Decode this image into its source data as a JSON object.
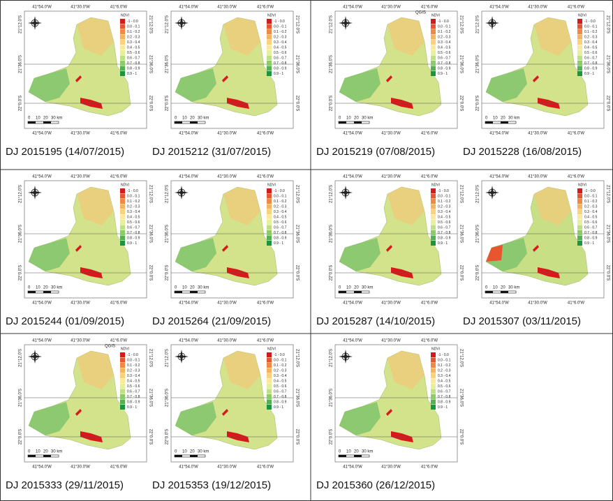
{
  "map_labels": {
    "lon": [
      "41°54.0'W",
      "41°30.0'W",
      "41°6.0'W"
    ],
    "lat": [
      "21°12.0'S",
      "21°36.0'S",
      "22°0.0'S"
    ],
    "legend_title": "NDVI",
    "legend_classes": [
      "-1 - 0.0",
      "0.0 - 0.1",
      "0.1 - 0.2",
      "0.2 - 0.3",
      "0.3 - 0.4",
      "0.4 - 0.5",
      "0.5 - 0.6",
      "0.6 - 0.7",
      "0.7 - 0.8",
      "0.8 - 0.9",
      "0.9 - 1"
    ],
    "scale": [
      "0",
      "10",
      "20",
      "30 km"
    ]
  },
  "maps": [
    {
      "caption": "DJ 2015195 (14/07/2015)"
    },
    {
      "caption": "DJ 2015212 (31/07/2015)"
    },
    {
      "caption": "DJ 2015219 (07/08/2015)",
      "watermark": "QGIS"
    },
    {
      "caption": "DJ 2015228 (16/08/2015)"
    },
    {
      "caption": "DJ 2015244 (01/09/2015)"
    },
    {
      "caption": "DJ 2015264 (21/09/2015)"
    },
    {
      "caption": "DJ 2015287 (14/10/2015)"
    },
    {
      "caption": "DJ 2015307 (03/11/2015)"
    },
    {
      "caption": "DJ 2015333 (29/11/2015)",
      "watermark": "QGIS"
    },
    {
      "caption": "DJ 2015353 (19/12/2015)"
    },
    {
      "caption": "DJ 2015360 (26/12/2015)"
    }
  ]
}
